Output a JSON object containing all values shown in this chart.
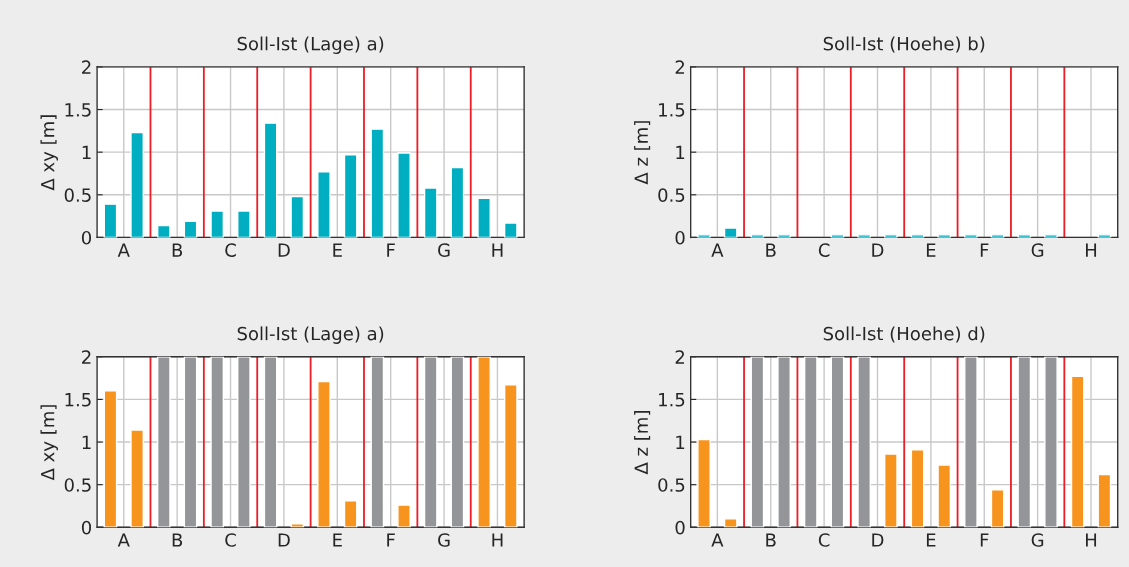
{
  "chart_data": [
    {
      "type": "bar",
      "title": "Soll-Ist (Lage) a)",
      "ylabel": "Δ xy [m]",
      "categories": [
        "A",
        "B",
        "C",
        "D",
        "E",
        "F",
        "G",
        "H"
      ],
      "ylim": [
        0,
        2
      ],
      "yticks": [
        0,
        0.5,
        1,
        1.5,
        2
      ],
      "grid": true,
      "series": [
        {
          "color": "#00aec2",
          "values": [
            0.39,
            0.14,
            0.31,
            1.34,
            0.77,
            1.27,
            0.58,
            0.46
          ]
        },
        {
          "color": "#00aec2",
          "values": [
            1.23,
            0.19,
            0.31,
            0.48,
            0.97,
            0.99,
            0.82,
            0.17
          ]
        }
      ]
    },
    {
      "type": "bar",
      "title": "Soll-Ist (Hoehe) b)",
      "ylabel": "Δ z [m]",
      "categories": [
        "A",
        "B",
        "C",
        "D",
        "E",
        "F",
        "G",
        "H"
      ],
      "ylim": [
        0,
        2
      ],
      "yticks": [
        0,
        0.5,
        1,
        1.5,
        2
      ],
      "grid": true,
      "series": [
        {
          "color": "#00aec2",
          "values": [
            0.03,
            0.03,
            null,
            0.03,
            0.03,
            0.03,
            0.03,
            null
          ]
        },
        {
          "color": "#00aec2",
          "values": [
            0.11,
            0.03,
            0.03,
            0.03,
            0.03,
            0.03,
            0.03,
            0.03
          ]
        }
      ]
    },
    {
      "type": "bar",
      "title": "Soll-Ist (Lage) a)",
      "ylabel": "Δ xy [m]",
      "categories": [
        "A",
        "B",
        "C",
        "D",
        "E",
        "F",
        "G",
        "H"
      ],
      "ylim": [
        0,
        2
      ],
      "yticks": [
        0,
        0.5,
        1,
        1.5,
        2
      ],
      "grid": true,
      "series": [
        {
          "colors": [
            "#f7941d",
            "#939598",
            "#939598",
            "#939598",
            "#f7941d",
            "#939598",
            "#939598",
            "#f7941d"
          ],
          "values": [
            1.6,
            2,
            2,
            2,
            1.71,
            2,
            2,
            2
          ]
        },
        {
          "colors": [
            "#f7941d",
            "#939598",
            "#939598",
            "#f7941d",
            "#f7941d",
            "#f7941d",
            "#939598",
            "#f7941d"
          ],
          "values": [
            1.14,
            2,
            2,
            0.04,
            0.31,
            0.26,
            2,
            1.67
          ]
        }
      ]
    },
    {
      "type": "bar",
      "title": "Soll-Ist (Hoehe) d)",
      "ylabel": "Δ z [m]",
      "categories": [
        "A",
        "B",
        "C",
        "D",
        "E",
        "F",
        "G",
        "H"
      ],
      "ylim": [
        0,
        2
      ],
      "yticks": [
        0,
        0.5,
        1,
        1.5,
        2
      ],
      "grid": true,
      "series": [
        {
          "colors": [
            "#f7941d",
            "#939598",
            "#939598",
            "#939598",
            "#f7941d",
            "#939598",
            "#939598",
            "#f7941d"
          ],
          "values": [
            1.03,
            2,
            2,
            2,
            0.91,
            2,
            2,
            1.77
          ]
        },
        {
          "colors": [
            "#f7941d",
            "#939598",
            "#939598",
            "#f7941d",
            "#f7941d",
            "#f7941d",
            "#939598",
            "#f7941d"
          ],
          "values": [
            0.1,
            2,
            2,
            0.86,
            0.73,
            0.44,
            2,
            0.62
          ]
        }
      ]
    }
  ]
}
